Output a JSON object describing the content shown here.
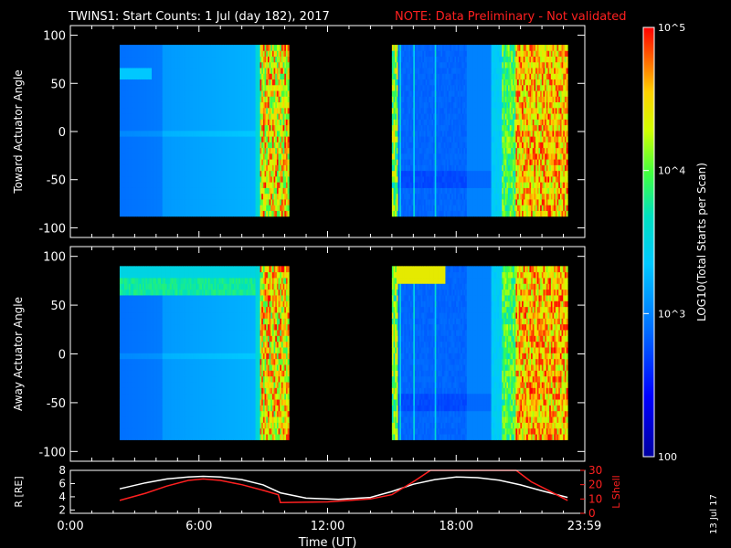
{
  "title": {
    "main": "TWINS1: Start Counts:  1 Jul (day 182), 2017",
    "note": "NOTE: Data Preliminary - Not validated",
    "note_color": "#ff2020"
  },
  "side_date": "13 Jul 17",
  "colorbar": {
    "label": "LOG10(Total Starts per Scan)",
    "scale": "log",
    "range": [
      100,
      100000
    ],
    "ticks": [
      {
        "value": 100000,
        "label": "10^5"
      },
      {
        "value": 10000,
        "label": "10^4"
      },
      {
        "value": 1000,
        "label": "10^3"
      },
      {
        "value": 100,
        "label": "100"
      }
    ]
  },
  "chart_data": [
    {
      "type": "heatmap",
      "panel": "toward",
      "ylabel": "Toward Actuator Angle",
      "xlim": [
        0,
        24
      ],
      "ylim": [
        -110,
        110
      ],
      "yticks": [
        100,
        50,
        0,
        -50,
        -100
      ],
      "data_y_range": [
        -88,
        90
      ],
      "segments": [
        {
          "x_start": 2.3,
          "x_end": 10.2,
          "description_free": true
        },
        {
          "x_start": 15.0,
          "x_end": 23.2
        }
      ]
    },
    {
      "type": "heatmap",
      "panel": "away",
      "ylabel": "Away Actuator Angle",
      "xlim": [
        0,
        24
      ],
      "ylim": [
        -110,
        110
      ],
      "yticks": [
        100,
        50,
        0,
        -50,
        -100
      ],
      "data_y_range": [
        -88,
        90
      ],
      "segments": [
        {
          "x_start": 2.3,
          "x_end": 10.2
        },
        {
          "x_start": 15.0,
          "x_end": 23.2
        }
      ]
    },
    {
      "type": "line",
      "panel": "orbit",
      "xlabel": "Time (UT)",
      "xlim": [
        0,
        24
      ],
      "xticks": [
        "0:00",
        "6:00",
        "12:00",
        "18:00",
        "23:59"
      ],
      "left_axis": {
        "label": "R [RE]",
        "ylim": [
          1.5,
          8
        ],
        "ticks": [
          2,
          4,
          6,
          8
        ]
      },
      "right_axis": {
        "label": "L Shell",
        "ylim": [
          0,
          30
        ],
        "ticks": [
          0,
          10,
          20,
          30
        ],
        "color": "#ff2020"
      },
      "series": [
        {
          "axis": "left",
          "color": "#ffffff",
          "x": [
            2.3,
            3.5,
            4.5,
            5.5,
            6.2,
            7.0,
            8.0,
            9.0,
            9.8,
            11.0,
            12.5,
            14.0,
            15.0,
            16.0,
            17.0,
            18.0,
            19.0,
            20.0,
            21.0,
            22.0,
            23.2
          ],
          "y": [
            5.2,
            6.1,
            6.7,
            7.0,
            7.1,
            7.0,
            6.6,
            5.8,
            4.6,
            3.8,
            3.6,
            3.9,
            4.8,
            5.9,
            6.6,
            7.0,
            6.9,
            6.5,
            5.8,
            4.9,
            3.9
          ]
        },
        {
          "axis": "right",
          "color": "#ff2020",
          "x": [
            2.3,
            3.5,
            4.5,
            5.5,
            6.2,
            7.0,
            8.0,
            9.0,
            9.7,
            9.8,
            12.0,
            14.0,
            15.0,
            16.0,
            16.8,
            20.8,
            21.5,
            22.3,
            23.2
          ],
          "y": [
            9,
            14,
            19,
            23,
            24,
            23,
            20,
            16,
            13,
            7.5,
            8,
            10,
            13,
            22,
            30,
            30,
            22,
            16,
            9
          ]
        }
      ]
    }
  ]
}
